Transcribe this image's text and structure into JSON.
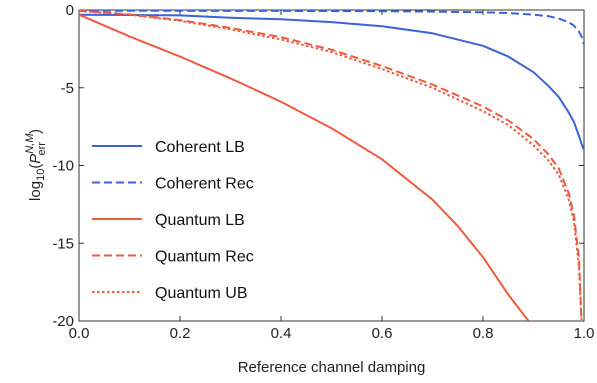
{
  "chart_data": {
    "type": "line",
    "xlabel": "Reference channel damping",
    "ylabel": {
      "prefix": "log",
      "sub": "10",
      "open": "(",
      "var": "P",
      "sup": "N,M",
      "varsub": "err",
      "close": ")"
    },
    "xlim": [
      0.0,
      1.0
    ],
    "ylim": [
      -20,
      0
    ],
    "xticks": [
      "0.0",
      "0.2",
      "0.4",
      "0.6",
      "0.8",
      "1.0"
    ],
    "yticks": [
      "0",
      "-5",
      "-10",
      "-15",
      "-20"
    ],
    "grid": false,
    "legend_position": "left",
    "series": [
      {
        "name": "Coherent LB",
        "color": "#3a63d8",
        "style": "solid",
        "x": [
          0.0,
          0.1,
          0.2,
          0.3,
          0.4,
          0.5,
          0.6,
          0.7,
          0.8,
          0.85,
          0.9,
          0.93,
          0.95,
          0.97,
          0.98,
          0.99,
          0.995,
          1.0
        ],
        "y": [
          -0.3,
          -0.32,
          -0.35,
          -0.5,
          -0.6,
          -0.78,
          -1.05,
          -1.5,
          -2.3,
          -3.0,
          -4.0,
          -4.9,
          -5.6,
          -6.6,
          -7.2,
          -8.1,
          -8.6,
          -9.0
        ]
      },
      {
        "name": "Coherent Rec",
        "color": "#3a63d8",
        "style": "dashed",
        "x": [
          0.0,
          0.2,
          0.4,
          0.6,
          0.7,
          0.8,
          0.85,
          0.9,
          0.93,
          0.95,
          0.97,
          0.98,
          0.99,
          0.995,
          1.0
        ],
        "y": [
          -0.05,
          -0.05,
          -0.06,
          -0.08,
          -0.1,
          -0.15,
          -0.2,
          -0.3,
          -0.4,
          -0.55,
          -0.8,
          -1.0,
          -1.4,
          -1.7,
          -2.2
        ]
      },
      {
        "name": "Quantum LB",
        "color": "#f05a41",
        "style": "solid",
        "x": [
          0.0,
          0.1,
          0.2,
          0.3,
          0.4,
          0.5,
          0.6,
          0.7,
          0.75,
          0.8,
          0.85,
          0.89
        ],
        "y": [
          -0.3,
          -1.7,
          -3.0,
          -4.4,
          -5.9,
          -7.6,
          -9.6,
          -12.2,
          -13.9,
          -15.9,
          -18.3,
          -20.0
        ]
      },
      {
        "name": "Quantum Rec",
        "color": "#f05a41",
        "style": "dashed",
        "x": [
          0.0,
          0.1,
          0.2,
          0.3,
          0.4,
          0.5,
          0.6,
          0.7,
          0.8,
          0.85,
          0.9,
          0.93,
          0.95,
          0.97,
          0.98,
          0.99,
          0.995
        ],
        "y": [
          -0.05,
          -0.28,
          -0.65,
          -1.15,
          -1.75,
          -2.55,
          -3.6,
          -4.8,
          -6.2,
          -7.1,
          -8.3,
          -9.3,
          -10.2,
          -11.8,
          -13.2,
          -16.0,
          -20.0
        ]
      },
      {
        "name": "Quantum UB",
        "color": "#f05a41",
        "style": "dotted",
        "x": [
          0.0,
          0.1,
          0.2,
          0.3,
          0.4,
          0.5,
          0.6,
          0.7,
          0.8,
          0.85,
          0.9,
          0.93,
          0.95,
          0.97,
          0.98,
          0.99,
          0.995
        ],
        "y": [
          -0.05,
          -0.3,
          -0.7,
          -1.25,
          -1.9,
          -2.7,
          -3.8,
          -5.0,
          -6.5,
          -7.4,
          -8.7,
          -9.7,
          -10.6,
          -12.2,
          -13.6,
          -16.5,
          -20.0
        ]
      }
    ]
  }
}
